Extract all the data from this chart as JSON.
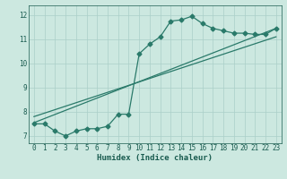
{
  "xlabel": "Humidex (Indice chaleur)",
  "xlim": [
    -0.5,
    23.5
  ],
  "ylim": [
    6.7,
    12.4
  ],
  "yticks": [
    7,
    8,
    9,
    10,
    11,
    12
  ],
  "xticks": [
    0,
    1,
    2,
    3,
    4,
    5,
    6,
    7,
    8,
    9,
    10,
    11,
    12,
    13,
    14,
    15,
    16,
    17,
    18,
    19,
    20,
    21,
    22,
    23
  ],
  "background_color": "#cce8e0",
  "grid_color": "#aacfc8",
  "line_color": "#2a7a6a",
  "line1_x": [
    0,
    1,
    2,
    3,
    4,
    5,
    6,
    7,
    8,
    9,
    10,
    11,
    12,
    13,
    14,
    15,
    16,
    17,
    18,
    19,
    20,
    21,
    22,
    23
  ],
  "line1_y": [
    7.5,
    7.5,
    7.2,
    7.0,
    7.2,
    7.3,
    7.3,
    7.4,
    7.9,
    7.9,
    10.4,
    10.8,
    11.1,
    11.75,
    11.8,
    11.95,
    11.65,
    11.45,
    11.35,
    11.25,
    11.25,
    11.2,
    11.2,
    11.45
  ],
  "line2_x": [
    0,
    23
  ],
  "line2_y": [
    7.55,
    11.45
  ],
  "line3_x": [
    0,
    23
  ],
  "line3_y": [
    7.8,
    11.1
  ],
  "marker": "D",
  "marker_size": 2.5,
  "line_width": 0.9,
  "font_color": "#1a5c50",
  "font_family": "monospace",
  "tick_fontsize": 5.5,
  "xlabel_fontsize": 6.5
}
